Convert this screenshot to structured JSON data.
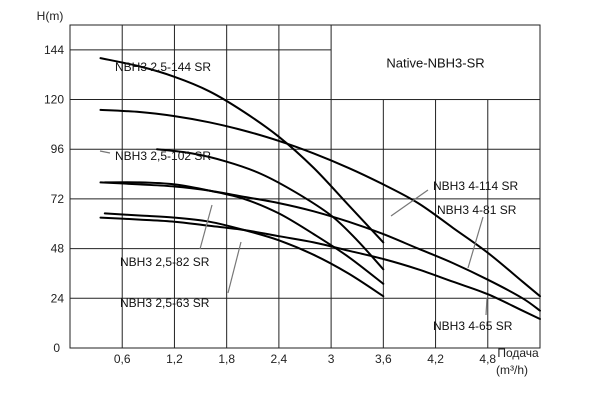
{
  "chart_data": {
    "type": "line",
    "title": "Native-NBH3-SR",
    "ylabel": "H(m)",
    "xlabel": "Подача (m³/h)",
    "xlabel_line1": "Подача",
    "xlabel_line2": "(m³/h)",
    "xlim": [
      0,
      5.4
    ],
    "ylim": [
      0,
      156
    ],
    "x_ticks": [
      0.6,
      1.2,
      1.8,
      2.4,
      3,
      3.6,
      4.2,
      4.8
    ],
    "x_tick_labels": [
      "0,6",
      "1,2",
      "1,8",
      "2,4",
      "3",
      "3,6",
      "4,2",
      "4,8"
    ],
    "y_ticks": [
      0,
      24,
      48,
      72,
      96,
      120,
      144
    ],
    "y_tick_labels": [
      "0",
      "24",
      "48",
      "72",
      "96",
      "120",
      "144"
    ],
    "grid": true,
    "series": [
      {
        "name": "NBH3 2,5-144 SR",
        "x": [
          0.35,
          0.8,
          1.2,
          1.6,
          2.0,
          2.4,
          2.8,
          3.2,
          3.6
        ],
        "y": [
          140,
          136,
          131,
          124,
          114,
          102,
          87,
          69,
          51
        ]
      },
      {
        "name": "NBH3 2,5-102 SR",
        "x": [
          1.0,
          1.4,
          1.8,
          2.2,
          2.6,
          3.0,
          3.3,
          3.6
        ],
        "y": [
          96,
          94,
          90,
          84,
          75,
          64,
          52,
          38
        ]
      },
      {
        "name": "NBH3 2,5-82 SR",
        "x": [
          0.4,
          0.8,
          1.2,
          1.6,
          2.0,
          2.4,
          2.8,
          3.2,
          3.6
        ],
        "y": [
          80,
          80,
          79,
          76,
          72,
          65,
          55,
          44,
          31
        ]
      },
      {
        "name": "NBH3 2,5-63 SR",
        "x": [
          0.4,
          0.8,
          1.2,
          1.6,
          2.0,
          2.4,
          2.8,
          3.2,
          3.6
        ],
        "y": [
          65,
          64,
          63,
          61,
          57,
          52,
          45,
          36,
          25
        ]
      },
      {
        "name": "NBH3 4-114 SR",
        "x": [
          0.35,
          0.8,
          1.2,
          1.6,
          2.0,
          2.4,
          2.8,
          3.2,
          3.6,
          4.0,
          4.4,
          4.8,
          5.2,
          5.4
        ],
        "y": [
          115,
          114,
          112,
          109,
          105,
          100,
          94,
          87,
          79,
          70,
          58,
          46,
          32,
          25
        ]
      },
      {
        "name": "NBH3 4-81 SR",
        "x": [
          0.35,
          0.8,
          1.2,
          1.6,
          2.0,
          2.4,
          2.8,
          3.2,
          3.6,
          4.0,
          4.4,
          4.8,
          5.2,
          5.4
        ],
        "y": [
          80,
          79,
          78,
          76,
          73,
          70,
          66,
          61,
          55,
          48,
          41,
          33,
          24,
          18
        ]
      },
      {
        "name": "NBH3 4-65 SR",
        "x": [
          0.35,
          0.8,
          1.2,
          1.6,
          2.0,
          2.4,
          2.8,
          3.2,
          3.6,
          4.0,
          4.4,
          4.8,
          5.2,
          5.4
        ],
        "y": [
          63,
          62,
          61,
          59,
          57,
          54,
          51,
          47,
          43,
          38,
          32,
          26,
          18,
          14
        ]
      }
    ]
  }
}
